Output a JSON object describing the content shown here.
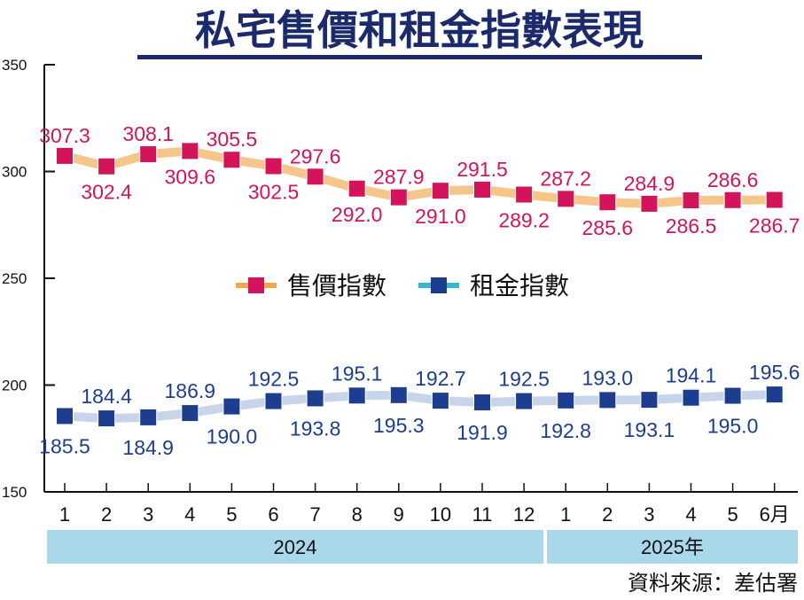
{
  "chart_data": {
    "type": "line",
    "title": "私宅售價和租金指數表現",
    "categories": [
      "1",
      "2",
      "3",
      "4",
      "5",
      "6",
      "7",
      "8",
      "9",
      "10",
      "11",
      "12",
      "1",
      "2",
      "3",
      "4",
      "5",
      "6月"
    ],
    "year_groups": [
      {
        "label": "2024",
        "from": 0,
        "to": 11
      },
      {
        "label": "2025年",
        "from": 12,
        "to": 17
      }
    ],
    "ylim": [
      150,
      350
    ],
    "yticks": [
      150,
      200,
      250,
      300,
      350
    ],
    "legend_position": "center",
    "series": [
      {
        "name": "售價指數",
        "color": "#d4145a",
        "line_color": "#f6c58a",
        "values": [
          307.3,
          302.4,
          308.1,
          309.6,
          305.5,
          302.5,
          297.6,
          292.0,
          287.9,
          291.0,
          291.5,
          289.2,
          287.2,
          285.6,
          284.9,
          286.5,
          286.6,
          286.7
        ],
        "labels": [
          "307.3",
          "302.4",
          "308.1",
          "309.6",
          "305.5",
          "302.5",
          "297.6",
          "292.0",
          "287.9",
          "291.0",
          "291.5",
          "289.2",
          "287.2",
          "285.6",
          "284.9",
          "286.5",
          "286.6",
          "286.7"
        ]
      },
      {
        "name": "租金指數",
        "color": "#1d3e8f",
        "line_color": "#c8d4ea",
        "values": [
          185.5,
          184.4,
          184.9,
          186.9,
          190.0,
          192.5,
          193.8,
          195.1,
          195.3,
          192.7,
          191.9,
          192.5,
          192.8,
          193.0,
          193.1,
          194.1,
          195.0,
          195.6
        ],
        "labels": [
          "185.5",
          "184.4",
          "184.9",
          "186.9",
          "190.0",
          "192.5",
          "193.8",
          "195.1",
          "195.3",
          "192.7",
          "191.9",
          "192.5",
          "192.8",
          "193.0",
          "193.1",
          "194.1",
          "195.0",
          "195.6"
        ]
      }
    ],
    "grid": false
  },
  "legend_line_colors": {
    "sale": "#f6a64a",
    "rent": "#35b6d6"
  },
  "source": "資料來源：差估署",
  "colors": {
    "title": "#1b2a6b",
    "year_band": "#a8d8ea"
  }
}
